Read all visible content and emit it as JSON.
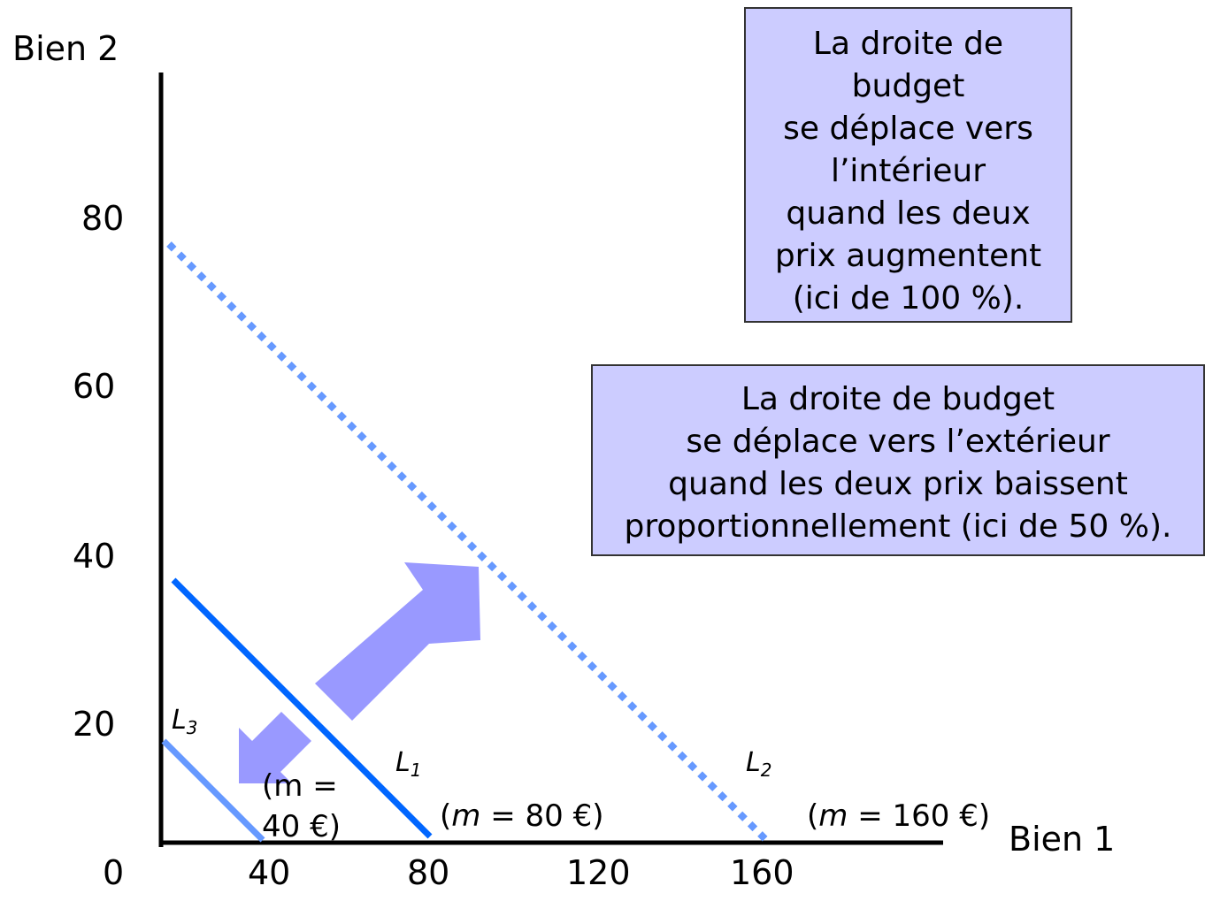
{
  "axes": {
    "x_label": "Bien 1",
    "y_label": "Bien 2",
    "origin_label": "0",
    "x_ticks": [
      "40",
      "80",
      "120",
      "160"
    ],
    "y_ticks": [
      "80",
      "60",
      "40",
      "20"
    ]
  },
  "lines": [
    {
      "name": "L3",
      "letter": "L",
      "sub": "3",
      "income_prefix": "(",
      "income_var": "m",
      "income_rest": " = 40 €)",
      "income_lines": [
        "(m =",
        "40 €)"
      ],
      "x_intercept": 40,
      "y_intercept": 20,
      "color": "#6699ff",
      "style": "solid"
    },
    {
      "name": "L1",
      "letter": "L",
      "sub": "1",
      "income_prefix": "(",
      "income_var": "m",
      "income_rest": " = 80 €)",
      "x_intercept": 80,
      "y_intercept": 40,
      "color": "#0066ff",
      "style": "solid"
    },
    {
      "name": "L2",
      "letter": "L",
      "sub": "2",
      "income_prefix": "(",
      "income_var": "m",
      "income_rest": " = 160 €)",
      "x_intercept": 160,
      "y_intercept": 80,
      "color": "#6699ff",
      "style": "dotted"
    }
  ],
  "notes": {
    "inward": [
      "La droite de",
      "budget",
      "se déplace vers",
      "l’intérieur",
      "quand les deux",
      "prix augmentent",
      "(ici de 100 %)."
    ],
    "outward": [
      "La droite de budget",
      "se déplace vers l’extérieur",
      "quand les deux prix baissent",
      "proportionnellement (ici de 50 %)."
    ]
  },
  "colors": {
    "box_fill": "#ccccff",
    "arrow_fill": "#9999ff",
    "axis": "#000000"
  }
}
